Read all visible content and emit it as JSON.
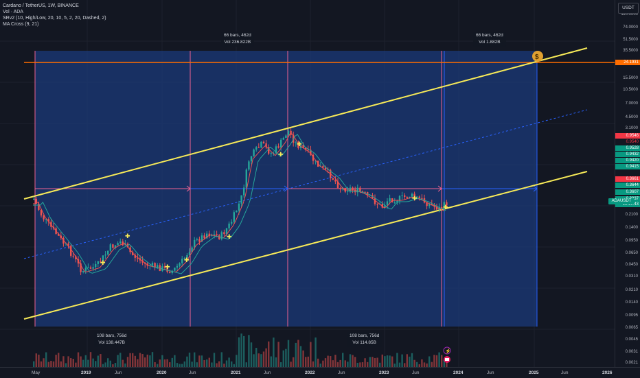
{
  "legend": {
    "symbol": "Cardano / TetherUS, 1W, BINANCE",
    "vol": "Vol · ADA",
    "srv2": "SRv2 (10, High/Low, 20, 10, 5, 2, 20, Dashed, 2)",
    "macross": "MA Cross (9, 21)"
  },
  "currency_button": "USDT",
  "price_ticks": [
    "110.0000",
    "74.0000",
    "51.5000",
    "35.5000",
    "24.1931",
    "15.5000",
    "10.5000",
    "7.0000",
    "4.5000",
    "3.1000",
    "0.9546",
    "0.9540",
    "0.9528",
    "0.9432",
    "0.9420",
    "0.9415",
    "0.3661",
    "0.3644",
    "0.3607",
    "0.3337",
    "0.2100",
    "0.1400",
    "0.0950",
    "0.0650",
    "0.0450",
    "0.0310",
    "0.0210",
    "0.0140",
    "0.0095",
    "0.0065",
    "0.0045",
    "0.0031",
    "0.0021"
  ],
  "price_tags": {
    "target": "24.1931",
    "r1": "0.9546",
    "r2": "0.9540",
    "g1": "0.9528",
    "g2": "0.9432",
    "g3": "0.9420",
    "g4": "0.9415",
    "r3": "0.3661",
    "r4": "0.3644",
    "g5": "0.3607",
    "current": "0.3337",
    "countdown": "15:19:43"
  },
  "symbol_tag": "ADAUSDT",
  "time_ticks": [
    {
      "label": "May",
      "bold": false
    },
    {
      "label": "2019",
      "bold": true
    },
    {
      "label": "Jun",
      "bold": false
    },
    {
      "label": "2020",
      "bold": true
    },
    {
      "label": "Jun",
      "bold": false
    },
    {
      "label": "2021",
      "bold": true
    },
    {
      "label": "Jun",
      "bold": false
    },
    {
      "label": "2022",
      "bold": true
    },
    {
      "label": "Jun",
      "bold": false
    },
    {
      "label": "2023",
      "bold": true
    },
    {
      "label": "Jun",
      "bold": false
    },
    {
      "label": "2024",
      "bold": true
    },
    {
      "label": "Jun",
      "bold": false
    },
    {
      "label": "2025",
      "bold": true
    },
    {
      "label": "Jun",
      "bold": false
    },
    {
      "label": "2026",
      "bold": true
    }
  ],
  "boxes": {
    "top_left": {
      "l1": "66 bars, 462d",
      "l2": "Vol 236.822B"
    },
    "top_right": {
      "l1": "66 bars, 462d",
      "l2": "Vol 1.882B"
    },
    "bottom_left": {
      "l1": "108 bars, 756d",
      "l2": "Vol 138.447B"
    },
    "bottom_right": {
      "l1": "108 bars, 756d",
      "l2": "Vol 114.85B"
    }
  },
  "icons": {
    "target": "money-bag-icon",
    "lightning": "lightning-icon",
    "flag": "event-flag-icon"
  },
  "colors": {
    "channel": "#f7ea58",
    "target_line": "#ff6d00",
    "box_fill": "#1b3a7a",
    "up": "#26a69a",
    "down": "#ef5350",
    "blue": "#2962ff"
  }
}
